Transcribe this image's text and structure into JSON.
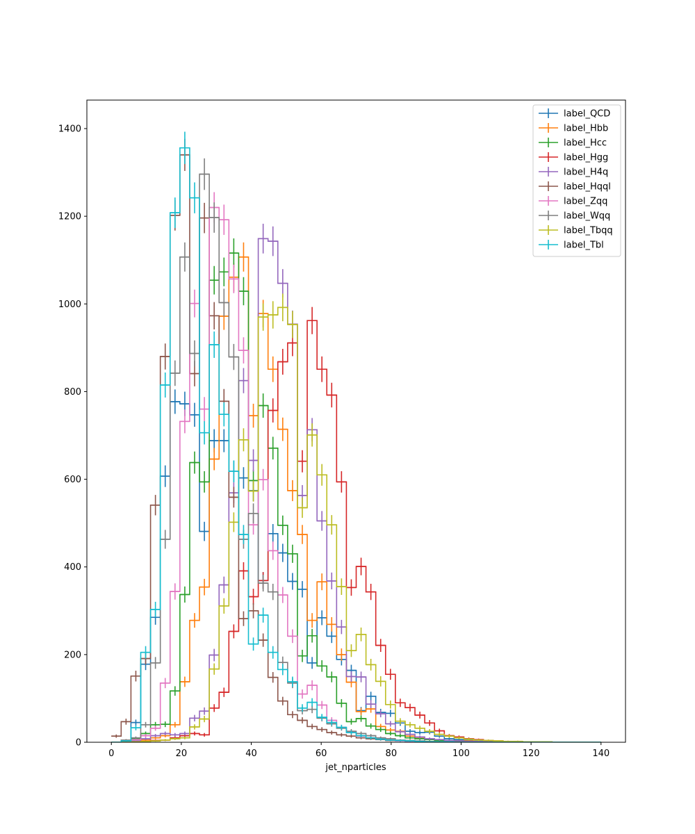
{
  "chart_data": {
    "type": "histogram",
    "xlabel": "jet_nparticles",
    "ylabel": "",
    "xlim": [
      -7,
      147
    ],
    "ylim": [
      0,
      1465
    ],
    "bin_width": 2.8,
    "bin_start": 0,
    "xticks": [
      0,
      20,
      40,
      60,
      80,
      100,
      120,
      140
    ],
    "yticks": [
      0,
      200,
      400,
      600,
      800,
      1000,
      1200,
      1400
    ],
    "grid": false,
    "legend_position": "upper right",
    "series": [
      {
        "name": "label_QCD",
        "color": "#1f77b4",
        "values": [
          0,
          3,
          45,
          178,
          285,
          607,
          777,
          772,
          747,
          481,
          688,
          688,
          618,
          603,
          574,
          369,
          476,
          432,
          367,
          349,
          181,
          284,
          242,
          189,
          164,
          72,
          105,
          68,
          66,
          44,
          25,
          22,
          23,
          14,
          8,
          6,
          4,
          3,
          2,
          2,
          1,
          1,
          1,
          0,
          0,
          0,
          0,
          0,
          0,
          0
        ]
      },
      {
        "name": "label_Hbb",
        "color": "#ff7f0e",
        "values": [
          0,
          0,
          2,
          5,
          10,
          15,
          40,
          138,
          278,
          354,
          646,
          972,
          1061,
          1107,
          745,
          978,
          851,
          714,
          574,
          474,
          278,
          366,
          269,
          200,
          137,
          70,
          76,
          36,
          28,
          25,
          14,
          9,
          7,
          5,
          4,
          3,
          3,
          2,
          1,
          1,
          1,
          0,
          0,
          0,
          0,
          0,
          0,
          0,
          0,
          0
        ]
      },
      {
        "name": "label_Hcc",
        "color": "#2ca02c",
        "values": [
          0,
          1,
          8,
          20,
          40,
          41,
          117,
          337,
          638,
          594,
          1054,
          1073,
          1116,
          1029,
          597,
          768,
          671,
          495,
          430,
          197,
          243,
          174,
          149,
          89,
          47,
          54,
          37,
          29,
          20,
          15,
          10,
          8,
          6,
          4,
          3,
          2,
          2,
          1,
          1,
          1,
          0,
          0,
          0,
          0,
          0,
          0,
          0,
          0,
          0,
          0
        ]
      },
      {
        "name": "label_Hgg",
        "color": "#d62728",
        "values": [
          0,
          0,
          1,
          2,
          4,
          5,
          10,
          15,
          20,
          17,
          78,
          114,
          253,
          391,
          332,
          369,
          757,
          868,
          911,
          641,
          962,
          851,
          792,
          594,
          353,
          401,
          343,
          221,
          155,
          90,
          79,
          62,
          44,
          26,
          15,
          12,
          8,
          6,
          4,
          3,
          2,
          2,
          1,
          1,
          1,
          0,
          0,
          0,
          0,
          0
        ]
      },
      {
        "name": "label_H4q",
        "color": "#9467bd",
        "values": [
          0,
          0,
          3,
          8,
          15,
          20,
          17,
          20,
          55,
          71,
          199,
          359,
          569,
          825,
          643,
          1149,
          1143,
          1047,
          954,
          563,
          713,
          505,
          368,
          263,
          150,
          149,
          87,
          65,
          42,
          24,
          18,
          12,
          8,
          6,
          4,
          3,
          2,
          2,
          1,
          1,
          0,
          0,
          0,
          0,
          0,
          0,
          0,
          0,
          0,
          0
        ]
      },
      {
        "name": "label_Hqql",
        "color": "#8c564b",
        "values": [
          14,
          47,
          151,
          191,
          541,
          880,
          1202,
          1340,
          841,
          1196,
          973,
          778,
          559,
          282,
          300,
          233,
          148,
          94,
          63,
          50,
          36,
          29,
          22,
          17,
          14,
          10,
          8,
          6,
          4,
          3,
          2,
          2,
          1,
          1,
          1,
          0,
          0,
          0,
          0,
          0,
          0,
          0,
          0,
          0,
          0,
          0,
          0,
          0,
          0,
          0
        ]
      },
      {
        "name": "label_Zqq",
        "color": "#e377c2",
        "values": [
          0,
          2,
          6,
          15,
          32,
          135,
          344,
          732,
          1001,
          760,
          1220,
          1192,
          1057,
          894,
          496,
          599,
          437,
          336,
          242,
          110,
          130,
          85,
          50,
          34,
          23,
          14,
          10,
          7,
          5,
          3,
          2,
          2,
          1,
          1,
          1,
          0,
          0,
          0,
          0,
          0,
          0,
          0,
          0,
          0,
          0,
          0,
          0,
          0,
          0,
          0
        ]
      },
      {
        "name": "label_Wqq",
        "color": "#7f7f7f",
        "values": [
          0,
          5,
          10,
          40,
          181,
          463,
          842,
          1107,
          887,
          1296,
          1197,
          1003,
          879,
          463,
          522,
          363,
          343,
          182,
          135,
          72,
          75,
          55,
          42,
          32,
          25,
          20,
          15,
          10,
          8,
          5,
          4,
          3,
          2,
          1,
          1,
          1,
          0,
          0,
          0,
          0,
          0,
          0,
          0,
          0,
          0,
          0,
          0,
          0,
          0,
          0
        ]
      },
      {
        "name": "label_Tbqq",
        "color": "#bcbd22",
        "values": [
          0,
          0,
          1,
          2,
          3,
          5,
          8,
          10,
          35,
          53,
          167,
          311,
          502,
          690,
          573,
          970,
          975,
          992,
          953,
          535,
          701,
          610,
          496,
          355,
          209,
          246,
          177,
          139,
          86,
          48,
          40,
          32,
          25,
          18,
          14,
          10,
          7,
          5,
          4,
          3,
          2,
          2,
          1,
          1,
          1,
          0,
          0,
          0,
          0,
          0
        ]
      },
      {
        "name": "label_Tbl",
        "color": "#17becf",
        "values": [
          0,
          3,
          33,
          205,
          303,
          815,
          1208,
          1356,
          1242,
          706,
          907,
          748,
          618,
          474,
          224,
          290,
          205,
          166,
          138,
          78,
          91,
          57,
          45,
          34,
          22,
          15,
          10,
          7,
          5,
          4,
          3,
          2,
          1,
          1,
          1,
          0,
          0,
          0,
          0,
          0,
          0,
          0,
          0,
          0,
          0,
          0,
          0,
          0,
          0,
          0
        ]
      }
    ]
  }
}
